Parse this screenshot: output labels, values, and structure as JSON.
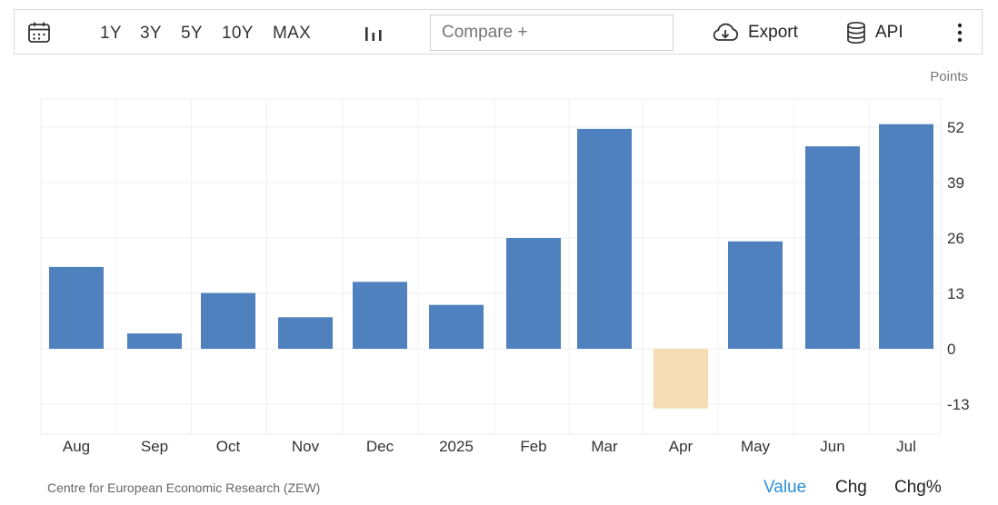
{
  "toolbar": {
    "calendar_icon": "calendar-icon",
    "ranges": [
      "1Y",
      "3Y",
      "5Y",
      "10Y",
      "MAX"
    ],
    "chart_type_icon": "bar-chart-icon",
    "compare_placeholder": "Compare +",
    "export_label": "Export",
    "export_icon": "cloud-download-icon",
    "api_label": "API",
    "api_icon": "database-icon",
    "more_icon": "vertical-dots-icon"
  },
  "chart_data": {
    "type": "bar",
    "units": "Points",
    "categories": [
      "Aug",
      "Sep",
      "Oct",
      "Nov",
      "Dec",
      "2025",
      "Feb",
      "Mar",
      "Apr",
      "May",
      "Jun",
      "Jul"
    ],
    "values": [
      19.2,
      3.6,
      13.1,
      7.4,
      15.7,
      10.3,
      26.0,
      51.6,
      -14.0,
      25.2,
      47.5,
      52.7
    ],
    "yticks": [
      52,
      39,
      26,
      13,
      0,
      -13
    ],
    "ylim": [
      -19,
      58
    ],
    "colors": {
      "positive": "#4e81bd",
      "negative": "#f5dcb4"
    },
    "grid": true
  },
  "footer": {
    "source": "Centre for European Economic Research (ZEW)",
    "modes": [
      "Value",
      "Chg",
      "Chg%"
    ],
    "active_mode": "Value",
    "active_color": "#2a8fd8"
  }
}
